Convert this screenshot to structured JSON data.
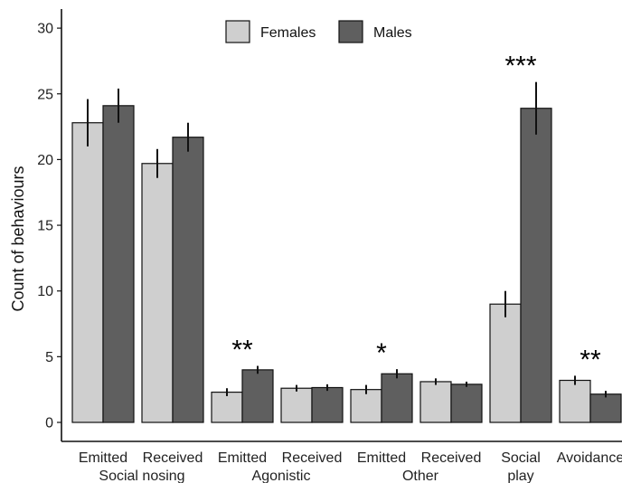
{
  "chart_data": {
    "type": "bar",
    "ylabel": "Count of behaviours",
    "ylim": [
      0,
      30
    ],
    "yticks": [
      0,
      5,
      10,
      15,
      20,
      25,
      30
    ],
    "categories": [
      {
        "label": "Emitted",
        "group": "Social nosing"
      },
      {
        "label": "Received",
        "group": "Social nosing"
      },
      {
        "label": "Emitted",
        "group": "Agonistic"
      },
      {
        "label": "Received",
        "group": "Agonistic"
      },
      {
        "label": "Emitted",
        "group": "Other"
      },
      {
        "label": "Received",
        "group": "Other"
      },
      {
        "label": "Social\nplay",
        "group": ""
      },
      {
        "label": "Avoidance",
        "group": ""
      }
    ],
    "group_labels": [
      "Social nosing",
      "Agonistic",
      "Other"
    ],
    "series": [
      {
        "name": "Females",
        "color": "#cfcfcf",
        "values": [
          22.8,
          19.7,
          2.3,
          2.6,
          2.5,
          3.1,
          9.0,
          3.2
        ],
        "errors": [
          1.8,
          1.1,
          0.3,
          0.25,
          0.35,
          0.25,
          1.0,
          0.35
        ]
      },
      {
        "name": "Males",
        "color": "#5f5f5f",
        "values": [
          24.1,
          21.7,
          4.0,
          2.65,
          3.7,
          2.9,
          23.9,
          2.15
        ],
        "errors": [
          1.3,
          1.1,
          0.3,
          0.25,
          0.35,
          0.2,
          2.0,
          0.25
        ]
      }
    ],
    "significance": [
      "",
      "",
      "**",
      "",
      "*",
      "",
      "***",
      "**"
    ],
    "legend_position": "top",
    "grid": false
  }
}
